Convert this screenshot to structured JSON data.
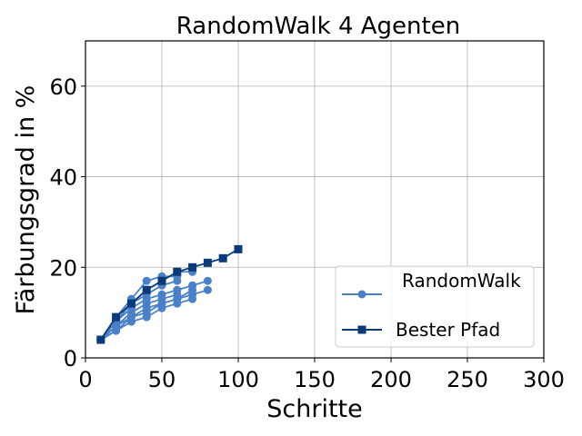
{
  "chart_data": {
    "type": "line",
    "title": "RandomWalk 4 Agenten",
    "xlabel": "Schritte",
    "ylabel": "Färbungsgrad in %",
    "xlim": [
      0,
      300
    ],
    "ylim": [
      0,
      70
    ],
    "xticks": [
      "0",
      "50",
      "100",
      "150",
      "200",
      "250",
      "300"
    ],
    "yticks": [
      "0",
      "20",
      "40",
      "60"
    ],
    "grid": true,
    "legend_position": "lower right",
    "random_walk_color": "#4a80c8",
    "best_path_color": "#0b3a7a",
    "legend": [
      {
        "label": "RandomWalk",
        "marker": "circle",
        "color": "#4a80c8"
      },
      {
        "label": "Bester Pfad",
        "marker": "square",
        "color": "#0b3a7a"
      }
    ],
    "series": [
      {
        "x": [
          10,
          20,
          30,
          40,
          50,
          60
        ],
        "y": [
          4,
          9,
          13,
          17,
          18,
          18
        ]
      },
      {
        "x": [
          10,
          20,
          30,
          40,
          50,
          60,
          70
        ],
        "y": [
          4,
          8,
          12,
          15,
          17,
          19,
          19
        ]
      },
      {
        "x": [
          10,
          20,
          30,
          40,
          50,
          60
        ],
        "y": [
          4,
          9,
          12,
          14,
          16,
          17
        ]
      },
      {
        "x": [
          10,
          20,
          30,
          40,
          50,
          60,
          70,
          80
        ],
        "y": [
          4,
          8,
          11,
          13,
          14,
          15,
          16,
          17
        ]
      },
      {
        "x": [
          10,
          20,
          30,
          40,
          50,
          60
        ],
        "y": [
          4,
          7,
          10,
          12,
          13,
          14
        ]
      },
      {
        "x": [
          10,
          20,
          30,
          40,
          50,
          60,
          70,
          80
        ],
        "y": [
          4,
          7,
          9,
          11,
          12,
          13,
          14,
          15
        ]
      },
      {
        "x": [
          10,
          20,
          30,
          40,
          50,
          60,
          70
        ],
        "y": [
          4,
          6,
          9,
          10,
          12,
          13,
          15
        ]
      },
      {
        "x": [
          10,
          20,
          30,
          40,
          50,
          60,
          70
        ],
        "y": [
          4,
          6,
          8,
          9,
          11,
          12,
          13
        ]
      },
      {
        "name": "Bester Pfad",
        "x": [
          10,
          20,
          30,
          40,
          50,
          60,
          70,
          80,
          90,
          100
        ],
        "y": [
          4,
          9,
          12,
          15,
          17,
          19,
          20,
          21,
          22,
          24
        ]
      }
    ]
  }
}
